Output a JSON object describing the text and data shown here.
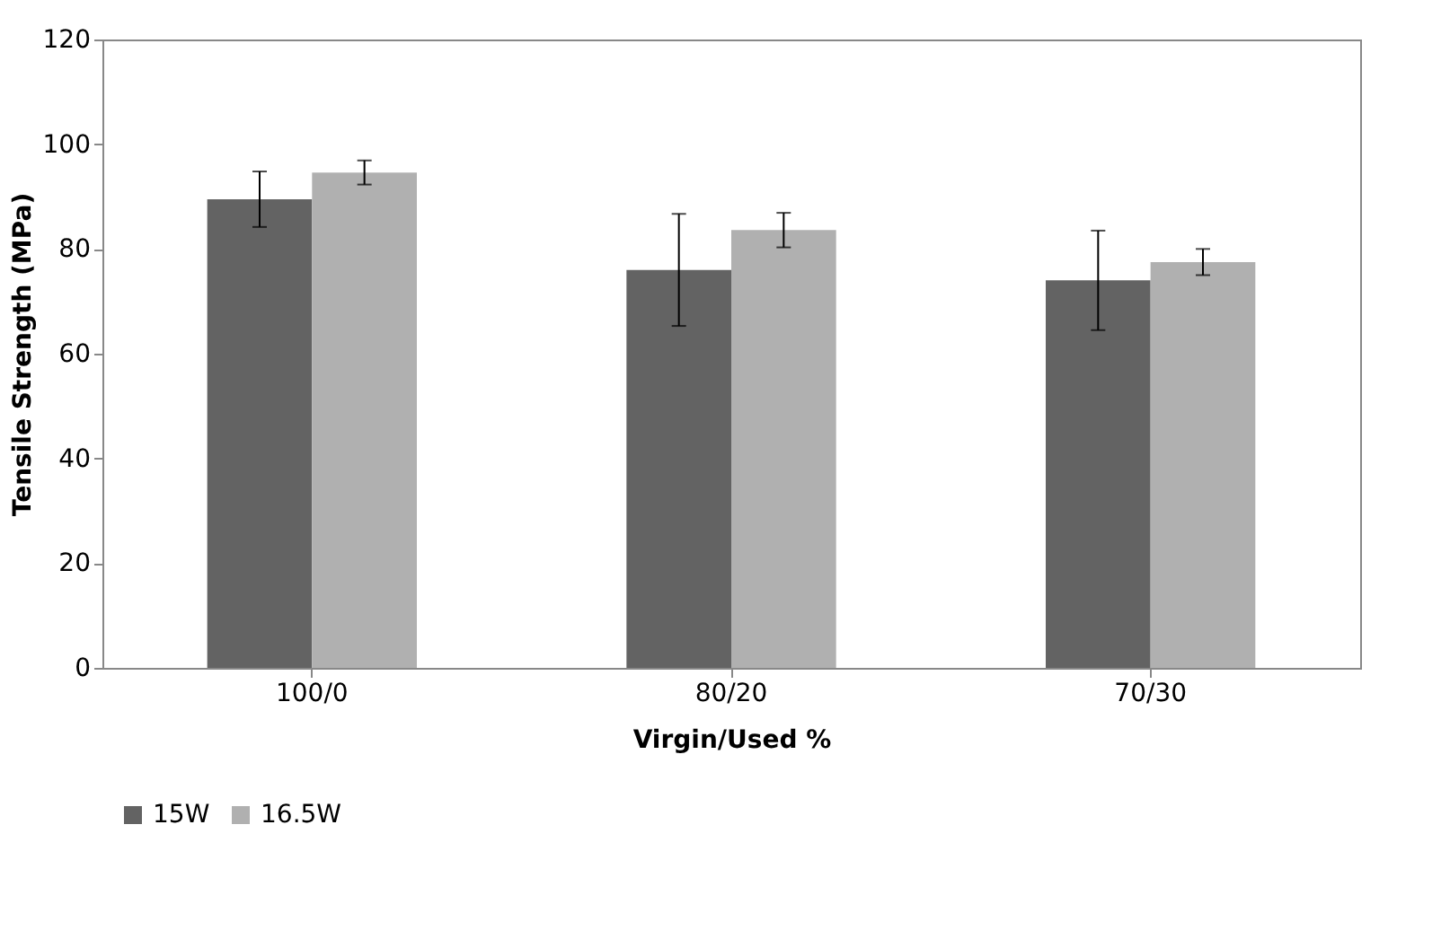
{
  "chart_data": {
    "type": "bar",
    "xlabel": "Virgin/Used %",
    "ylabel": "Tensile Strength (MPa)",
    "categories": [
      "100/0",
      "80/20",
      "70/30"
    ],
    "series": [
      {
        "name": "15W",
        "color": "#636363",
        "values": [
          89.5,
          76,
          74
        ],
        "errors": [
          5.3,
          10.7,
          9.5
        ]
      },
      {
        "name": "16.5W",
        "color": "#b0b0b0",
        "values": [
          94.6,
          83.6,
          77.5
        ],
        "errors": [
          2.3,
          3.3,
          2.5
        ]
      }
    ],
    "ylim": [
      0,
      120
    ],
    "yticks": [
      0,
      20,
      40,
      60,
      80,
      100,
      120
    ],
    "grid": false,
    "legend": "bottom"
  }
}
